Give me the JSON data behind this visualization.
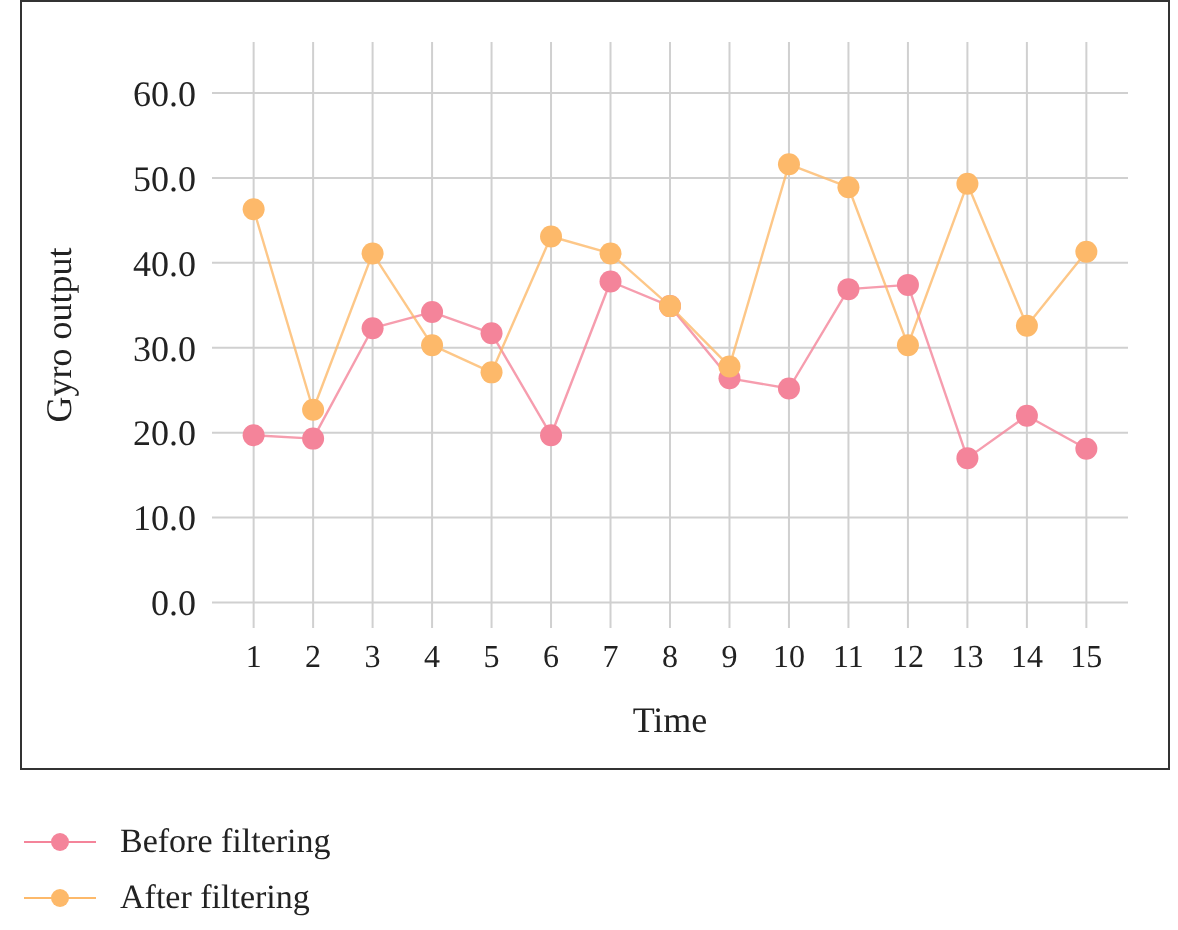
{
  "chart_data": {
    "type": "line",
    "xlabel": "Time",
    "ylabel": "Gyro output",
    "x": [
      1,
      2,
      3,
      4,
      5,
      6,
      7,
      8,
      9,
      10,
      11,
      12,
      13,
      14,
      15
    ],
    "xlim": [
      0.3,
      15.7
    ],
    "xticks": [
      1,
      2,
      3,
      4,
      5,
      6,
      7,
      8,
      9,
      10,
      11,
      12,
      13,
      14,
      15
    ],
    "series": [
      {
        "name": "Before filtering",
        "color": "#f4849a",
        "values": [
          19.7,
          19.3,
          32.3,
          34.2,
          31.7,
          19.7,
          37.8,
          34.9,
          26.4,
          25.2,
          36.9,
          37.4,
          17.0,
          22.0,
          18.1
        ]
      },
      {
        "name": "After filtering",
        "color": "#fdb96a",
        "values": [
          46.3,
          22.7,
          41.1,
          30.3,
          27.1,
          43.1,
          41.1,
          34.9,
          27.8,
          51.6,
          48.9,
          30.3,
          49.3,
          32.6,
          41.3
        ]
      }
    ],
    "ylim": [
      -3,
      66
    ],
    "yticks": [
      {
        "value": 0,
        "label": "0.0"
      },
      {
        "value": 10,
        "label": "10.0"
      },
      {
        "value": 20,
        "label": "20.0"
      },
      {
        "value": 30,
        "label": "30.0"
      },
      {
        "value": 40,
        "label": "40.0"
      },
      {
        "value": 50,
        "label": "50.0"
      },
      {
        "value": 60,
        "label": "60.0"
      }
    ],
    "grid": true,
    "legend": "bottom",
    "marker": "circle",
    "line_style": "solid"
  }
}
